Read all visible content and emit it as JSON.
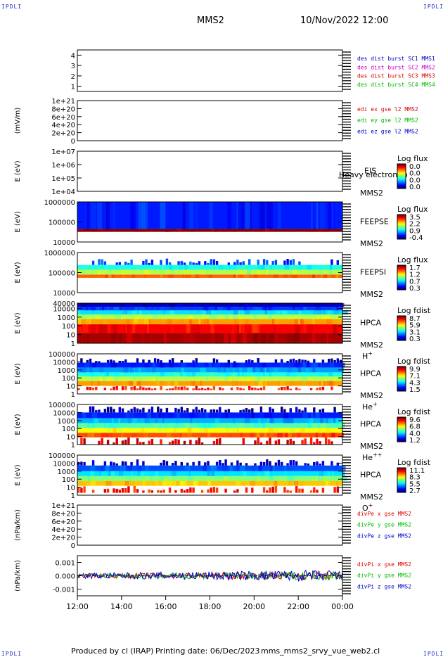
{
  "corner_labels": {
    "top_left": "IPDLI",
    "top_right": "IPDLI",
    "bottom_left": "IPDLI",
    "bottom_right": "IPDLI"
  },
  "header": {
    "spacecraft": "MMS2",
    "datetime": "10/Nov/2022 12:00"
  },
  "footer": {
    "produced_by": "Produced by cl (IRAP)",
    "printing_date": "Printing date: 06/Dec/2023",
    "filename": "mms_mms2_srvy_vue_web2.cl"
  },
  "chart_data": [
    {
      "type": "line",
      "panel": "burst",
      "ylabel": "",
      "yticks": [
        "1",
        "2",
        "3",
        "4"
      ],
      "ylim": [
        0.5,
        4.5
      ],
      "legend": [
        {
          "text": "des dist burst SC1 MMS1",
          "color": "#0000cc"
        },
        {
          "text": "des dist burst SC2 MMS2",
          "color": "#cc00cc"
        },
        {
          "text": "des dist burst SC3 MMS3",
          "color": "#dd0000"
        },
        {
          "text": "des dist burst SC4 MMS4",
          "color": "#00bb00"
        }
      ],
      "series": []
    },
    {
      "type": "line",
      "panel": "edi",
      "ylabel": "(mV/m)",
      "yticks": [
        "0",
        "2e+20",
        "4e+20",
        "6e+20",
        "8e+20",
        "1e+21"
      ],
      "ylim": [
        0,
        1e+21
      ],
      "legend": [
        {
          "text": "edi ex gse l2 MMS2",
          "color": "#dd0000"
        },
        {
          "text": "edi ey gse l2 MMS2",
          "color": "#00bb00"
        },
        {
          "text": "edi ez gse l2 MMS2",
          "color": "#0000cc"
        }
      ],
      "series": [
        {
          "name": "edi ex gse l2 MMS2",
          "values": [
            0
          ]
        },
        {
          "name": "edi ey gse l2 MMS2",
          "values": [
            0
          ]
        },
        {
          "name": "edi ez gse l2 MMS2",
          "values": [
            0
          ]
        }
      ],
      "zero_line": true
    },
    {
      "type": "heatmap",
      "panel": "eis",
      "ylabel": "E (eV)",
      "yticks": [
        "1e+04",
        "1e+05",
        "1e+06",
        "1e+07"
      ],
      "log_y": true,
      "labels": [
        "EIS",
        "MMS2"
      ],
      "overlay_text": "Heavy electron to",
      "colorbar": {
        "title": "Log flux",
        "ticks": [
          "0.0",
          "0.0",
          "0.0",
          "0.0"
        ]
      },
      "bands": []
    },
    {
      "type": "heatmap",
      "panel": "feepse",
      "ylabel": "E (eV)",
      "yticks": [
        "10000",
        "100000",
        "1000000"
      ],
      "log_y": true,
      "labels": [
        "FEEPSE",
        "MMS2"
      ],
      "colorbar": {
        "title": "Log flux",
        "ticks": [
          "3.5",
          "2.2",
          "0.9",
          "-0.4"
        ]
      },
      "bands": [
        {
          "from": 10000,
          "to": 32000,
          "level": null
        },
        {
          "from": 32000,
          "to": 45000,
          "level": 1.0
        },
        {
          "from": 45000,
          "to": 1000000,
          "level": 0.15
        }
      ]
    },
    {
      "type": "heatmap",
      "panel": "feepsi",
      "ylabel": "E (eV)",
      "yticks": [
        "10000",
        "100000",
        "1000000"
      ],
      "log_y": true,
      "labels": [
        "FEEPSI",
        "MMS2"
      ],
      "colorbar": {
        "title": "Log flux",
        "ticks": [
          "1.7",
          "1.2",
          "0.7",
          "0.3"
        ]
      },
      "bands": [
        {
          "from": 55000,
          "to": 80000,
          "level": 0.78
        },
        {
          "from": 80000,
          "to": 140000,
          "level": 0.55
        },
        {
          "from": 140000,
          "to": 240000,
          "level": 0.4
        },
        {
          "from": 240000,
          "to": 500000,
          "level": 0.18,
          "sparse": true
        }
      ]
    },
    {
      "type": "heatmap",
      "panel": "hpca_h",
      "ylabel": "E (eV)",
      "yticks": [
        "1",
        "10",
        "100",
        "1000",
        "10000"
      ],
      "ytop": "40000",
      "log_y": true,
      "labels": [
        "HPCA",
        "MMS2",
        "H+"
      ],
      "colorbar": {
        "title": "Log fdist",
        "ticks": [
          "8.7",
          "5.9",
          "3.1",
          "0.3"
        ]
      },
      "bands": [
        {
          "from": 1,
          "to": 15,
          "level": 0.96
        },
        {
          "from": 15,
          "to": 150,
          "level": 0.88
        },
        {
          "from": 150,
          "to": 600,
          "level": 0.72
        },
        {
          "from": 600,
          "to": 2000,
          "level": 0.55
        },
        {
          "from": 2000,
          "to": 6000,
          "level": 0.35
        },
        {
          "from": 6000,
          "to": 15000,
          "level": 0.18
        },
        {
          "from": 15000,
          "to": 40000,
          "level": 0.06
        }
      ]
    },
    {
      "type": "heatmap",
      "panel": "hpca_he",
      "ylabel": "E (eV)",
      "yticks": [
        "1",
        "10",
        "100",
        "1000",
        "10000",
        "100000"
      ],
      "log_y": true,
      "labels": [
        "HPCA",
        "MMS2",
        "He+"
      ],
      "colorbar": {
        "title": "Log fdist",
        "ticks": [
          "9.9",
          "7.1",
          "4.3",
          "1.5"
        ]
      },
      "bands": [
        {
          "from": 3,
          "to": 10,
          "level": 0.85,
          "sparse": true
        },
        {
          "from": 10,
          "to": 40,
          "level": 0.72
        },
        {
          "from": 40,
          "to": 150,
          "level": 0.55
        },
        {
          "from": 150,
          "to": 500,
          "level": 0.4
        },
        {
          "from": 500,
          "to": 2000,
          "level": 0.28
        },
        {
          "from": 2000,
          "to": 8000,
          "level": 0.15
        },
        {
          "from": 8000,
          "to": 30000,
          "level": 0.05,
          "sparse": true
        }
      ]
    },
    {
      "type": "heatmap",
      "panel": "hpca_hepp",
      "ylabel": "E (eV)",
      "yticks": [
        "1",
        "10",
        "100",
        "1000",
        "10000",
        "100000"
      ],
      "log_y": true,
      "labels": [
        "HPCA",
        "MMS2",
        "He++"
      ],
      "colorbar": {
        "title": "Log fdist",
        "ticks": [
          "9.6",
          "6.8",
          "4.0",
          "1.2"
        ]
      },
      "bands": [
        {
          "from": 1,
          "to": 8,
          "level": 0.9,
          "sparse": true
        },
        {
          "from": 8,
          "to": 30,
          "level": 0.8
        },
        {
          "from": 30,
          "to": 120,
          "level": 0.62
        },
        {
          "from": 120,
          "to": 500,
          "level": 0.45
        },
        {
          "from": 500,
          "to": 2000,
          "level": 0.3
        },
        {
          "from": 2000,
          "to": 10000,
          "level": 0.15
        },
        {
          "from": 10000,
          "to": 60000,
          "level": 0.04,
          "sparse": true
        }
      ]
    },
    {
      "type": "heatmap",
      "panel": "hpca_o",
      "ylabel": "E (eV)",
      "yticks": [
        "1",
        "10",
        "100",
        "1000",
        "10000",
        "100000"
      ],
      "log_y": true,
      "labels": [
        "HPCA",
        "MMS2",
        "O+"
      ],
      "colorbar": {
        "title": "Log fdist",
        "ticks": [
          "11.1",
          "8.3",
          "5.5",
          "2.7"
        ]
      },
      "bands": [
        {
          "from": 2,
          "to": 15,
          "level": 0.85,
          "sparse": true
        },
        {
          "from": 15,
          "to": 60,
          "level": 0.68
        },
        {
          "from": 60,
          "to": 250,
          "level": 0.5
        },
        {
          "from": 250,
          "to": 1000,
          "level": 0.35
        },
        {
          "from": 1000,
          "to": 5000,
          "level": 0.2
        },
        {
          "from": 5000,
          "to": 30000,
          "level": 0.06,
          "sparse": true
        }
      ]
    },
    {
      "type": "line",
      "panel": "divpe",
      "ylabel": "(nPa/km)",
      "yticks": [
        "0",
        "2e+20",
        "4e+20",
        "6e+20",
        "8e+20",
        "1e+21"
      ],
      "ylim": [
        0,
        1e+21
      ],
      "legend": [
        {
          "text": "divPe x gse MMS2",
          "color": "#dd0000"
        },
        {
          "text": "divPe y gse MMS2",
          "color": "#00bb00"
        },
        {
          "text": "divPe z gse MMS2",
          "color": "#0000cc"
        }
      ],
      "series": [
        {
          "name": "divPe x gse MMS2",
          "values": [
            0
          ]
        },
        {
          "name": "divPe y gse MMS2",
          "values": [
            0
          ]
        },
        {
          "name": "divPe z gse MMS2",
          "values": [
            0
          ]
        }
      ],
      "zero_line": true
    },
    {
      "type": "line",
      "panel": "divpi",
      "ylabel": "(nPa/km)",
      "yticks": [
        "-0.001",
        "0.000",
        "0.001"
      ],
      "ylim": [
        -0.0015,
        0.0015
      ],
      "legend": [
        {
          "text": "divPi x gse MMS2",
          "color": "#dd0000"
        },
        {
          "text": "divPi y gse MMS2",
          "color": "#00bb00"
        },
        {
          "text": "divPi z gse MMS2",
          "color": "#0000cc"
        }
      ],
      "series": [
        {
          "name": "divPi x gse MMS2",
          "amplitude": 0.0003
        },
        {
          "name": "divPi y gse MMS2",
          "amplitude": 0.0003
        },
        {
          "name": "divPi z gse MMS2",
          "amplitude": 0.0004
        }
      ],
      "zero_line": true
    }
  ],
  "time_axis": {
    "ticks": [
      "12:00",
      "14:00",
      "16:00",
      "18:00",
      "20:00",
      "22:00",
      "00:00"
    ]
  }
}
